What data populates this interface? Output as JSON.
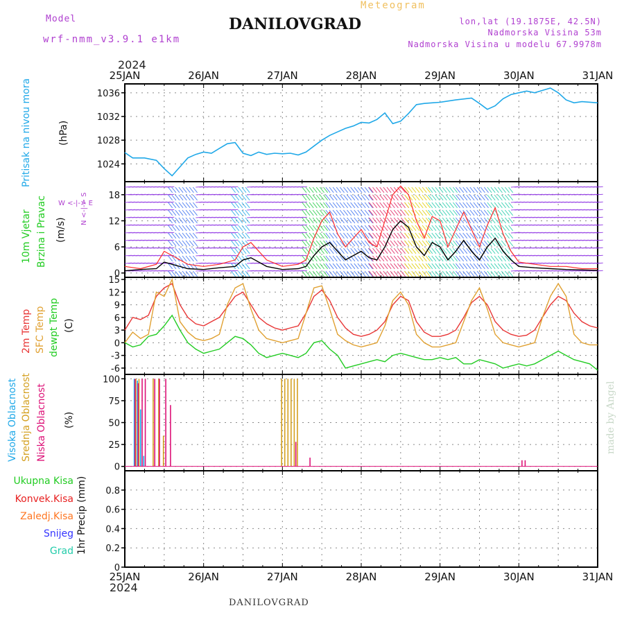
{
  "header": {
    "model_label": "Model",
    "model_name": "wrf-nmm_v3.9.1 e1km",
    "station": "DANILOVGRAD",
    "product": "Meteogram",
    "coords": "lon,lat (19.1875E, 42.5N)",
    "elevation": "Nadmorska Visina 53m",
    "model_elevation": "Nadmorska Visina u modelu 67.9978m",
    "footer_station": "DANILOVGRAD",
    "credit": "made by Angel"
  },
  "colors": {
    "pressure": "#1fa8e8",
    "wind_speed": "#000000",
    "wind_gust": "#ff2b2b",
    "temp_2m": "#e83535",
    "temp_sfc": "#e0a030",
    "dewpoint": "#22cc22",
    "cloud_high": "#1fa8e8",
    "cloud_mid": "#d4a020",
    "cloud_low": "#dd1177",
    "precip_total": "#22cc22",
    "precip_conv": "#e82020",
    "precip_frozen": "#ff7722",
    "snow": "#3333ff",
    "graupel": "#22ccaa"
  },
  "chart_data": [
    {
      "type": "line",
      "panel": "pressure",
      "x_ticks": [
        "25JAN",
        "26JAN",
        "27JAN",
        "28JAN",
        "29JAN",
        "30JAN",
        "31JAN"
      ],
      "year": "2024",
      "ylabel": "Pritisak na nivou mora",
      "yunit": "(hPa)",
      "ylim": [
        1021,
        1037.5
      ],
      "yticks": [
        1024,
        1028,
        1032,
        1036
      ],
      "series": [
        {
          "key": "slp",
          "x": [
            0,
            0.1,
            0.25,
            0.4,
            0.5,
            0.6,
            0.7,
            0.8,
            0.9,
            1.0,
            1.1,
            1.2,
            1.3,
            1.4,
            1.5,
            1.6,
            1.7,
            1.8,
            1.9,
            2.0,
            2.1,
            2.2,
            2.3,
            2.4,
            2.5,
            2.6,
            2.7,
            2.8,
            2.9,
            3.0,
            3.1,
            3.2,
            3.3,
            3.4,
            3.5,
            3.6,
            3.7,
            3.8,
            3.9,
            4.0,
            4.2,
            4.4,
            4.5,
            4.6,
            4.7,
            4.8,
            4.9,
            5.0,
            5.1,
            5.2,
            5.3,
            5.4,
            5.5,
            5.6,
            5.7,
            5.8,
            6.0
          ],
          "values": [
            1025.9,
            1025.0,
            1025.0,
            1024.6,
            1023.2,
            1022.0,
            1023.5,
            1025.0,
            1025.6,
            1026.0,
            1025.8,
            1026.6,
            1027.4,
            1027.6,
            1025.8,
            1025.4,
            1026.0,
            1025.6,
            1025.8,
            1025.7,
            1025.8,
            1025.5,
            1026.0,
            1027.0,
            1028.0,
            1028.8,
            1029.4,
            1030.0,
            1030.4,
            1031.0,
            1030.9,
            1031.5,
            1032.6,
            1030.8,
            1031.2,
            1032.5,
            1034.0,
            1034.2,
            1034.3,
            1034.4,
            1034.8,
            1035.1,
            1034.2,
            1033.2,
            1033.8,
            1035.0,
            1035.7,
            1036.0,
            1036.3,
            1036.0,
            1036.4,
            1036.8,
            1036.0,
            1034.8,
            1034.3,
            1034.5,
            1034.3
          ]
        }
      ]
    },
    {
      "type": "line",
      "panel": "wind",
      "ylabel": "10m Vjetar Brzina i Pravac",
      "yunit": "(m/s)",
      "compass": "W <-|-> E",
      "compass_ns": "N <-|-> S",
      "ylim": [
        -1,
        21
      ],
      "yticks": [
        0,
        6,
        12,
        18
      ],
      "series": [
        {
          "key": "speed",
          "x": [
            0,
            0.2,
            0.4,
            0.5,
            0.6,
            0.8,
            1.0,
            1.2,
            1.4,
            1.5,
            1.6,
            1.8,
            2.0,
            2.2,
            2.3,
            2.4,
            2.5,
            2.6,
            2.7,
            2.8,
            2.9,
            3.0,
            3.1,
            3.2,
            3.3,
            3.4,
            3.5,
            3.6,
            3.7,
            3.8,
            3.9,
            4.0,
            4.1,
            4.2,
            4.3,
            4.4,
            4.5,
            4.6,
            4.7,
            4.8,
            4.9,
            5.0,
            5.2,
            5.4,
            5.6,
            5.8,
            6.0
          ],
          "values": [
            0.5,
            0.8,
            1.0,
            2.5,
            2.0,
            1.0,
            0.8,
            1.2,
            1.5,
            3.0,
            3.5,
            1.5,
            0.8,
            1.0,
            1.5,
            4.0,
            6.0,
            7.0,
            5.0,
            3.0,
            4.0,
            5.0,
            3.5,
            3.0,
            6.0,
            10.0,
            12.0,
            10.5,
            6.0,
            4.0,
            7.0,
            6.0,
            3.0,
            5.0,
            7.5,
            5.0,
            3.0,
            6.0,
            8.0,
            5.0,
            3.0,
            1.5,
            1.2,
            1.0,
            0.8,
            0.7,
            0.6
          ]
        },
        {
          "key": "gust",
          "x": [
            0,
            0.2,
            0.4,
            0.5,
            0.6,
            0.8,
            1.0,
            1.2,
            1.4,
            1.5,
            1.6,
            1.8,
            2.0,
            2.2,
            2.3,
            2.4,
            2.5,
            2.6,
            2.7,
            2.8,
            2.9,
            3.0,
            3.1,
            3.2,
            3.3,
            3.4,
            3.5,
            3.6,
            3.7,
            3.8,
            3.9,
            4.0,
            4.1,
            4.2,
            4.3,
            4.4,
            4.5,
            4.6,
            4.7,
            4.8,
            4.9,
            5.0,
            5.2,
            5.4,
            5.6,
            5.8,
            6.0
          ],
          "values": [
            1.5,
            1.0,
            2.0,
            5.0,
            4.0,
            2.0,
            1.5,
            2.0,
            3.0,
            6.0,
            7.0,
            3.0,
            1.5,
            2.0,
            3.0,
            8.0,
            12.0,
            14.0,
            9.0,
            6.0,
            8.0,
            10.0,
            7.0,
            6.0,
            12.0,
            18.0,
            20.0,
            18.0,
            12.0,
            8.0,
            13.0,
            12.0,
            6.0,
            10.0,
            14.0,
            10.0,
            6.0,
            11.0,
            15.0,
            9.0,
            5.0,
            2.5,
            2.0,
            1.5,
            1.5,
            1.0,
            1.0
          ]
        }
      ]
    },
    {
      "type": "line",
      "panel": "temperature",
      "ylabel_2m": "2m Temp",
      "ylabel_sfc": "SFC Temp",
      "ylabel_dew": "dewpt Temp",
      "yunit": "(C)",
      "ylim": [
        -7.5,
        15.5
      ],
      "yticks": [
        -6,
        -3,
        0,
        3,
        6,
        9,
        12,
        15
      ],
      "series": [
        {
          "key": "t2m",
          "x": [
            0,
            0.1,
            0.2,
            0.3,
            0.4,
            0.5,
            0.6,
            0.7,
            0.8,
            0.9,
            1.0,
            1.1,
            1.2,
            1.3,
            1.4,
            1.5,
            1.6,
            1.7,
            1.8,
            1.9,
            2.0,
            2.1,
            2.2,
            2.3,
            2.4,
            2.5,
            2.6,
            2.7,
            2.8,
            2.9,
            3.0,
            3.1,
            3.2,
            3.3,
            3.4,
            3.5,
            3.6,
            3.7,
            3.8,
            3.9,
            4.0,
            4.1,
            4.2,
            4.3,
            4.4,
            4.5,
            4.6,
            4.7,
            4.8,
            4.9,
            5.0,
            5.1,
            5.2,
            5.3,
            5.4,
            5.5,
            5.6,
            5.7,
            5.8,
            5.9,
            6.0
          ],
          "values": [
            3.0,
            6.0,
            5.5,
            6.5,
            11.0,
            13.0,
            14.0,
            9.0,
            6.0,
            4.5,
            4.0,
            5.0,
            6.0,
            8.5,
            11.0,
            12.0,
            9.0,
            6.0,
            4.5,
            3.5,
            3.0,
            3.5,
            4.0,
            7.0,
            11.0,
            12.5,
            10.0,
            6.0,
            3.5,
            2.0,
            1.5,
            2.0,
            3.0,
            5.0,
            9.0,
            11.0,
            10.0,
            5.0,
            2.5,
            1.5,
            1.5,
            2.0,
            3.0,
            6.0,
            9.5,
            11.0,
            9.0,
            5.0,
            3.0,
            2.0,
            1.5,
            1.8,
            3.0,
            6.0,
            9.0,
            11.0,
            10.0,
            7.0,
            5.0,
            4.0,
            3.5
          ]
        },
        {
          "key": "tsfc",
          "x": [
            0,
            0.1,
            0.2,
            0.3,
            0.4,
            0.5,
            0.6,
            0.7,
            0.8,
            0.9,
            1.0,
            1.1,
            1.2,
            1.3,
            1.4,
            1.5,
            1.6,
            1.7,
            1.8,
            1.9,
            2.0,
            2.1,
            2.2,
            2.3,
            2.4,
            2.5,
            2.6,
            2.7,
            2.8,
            2.9,
            3.0,
            3.1,
            3.2,
            3.3,
            3.4,
            3.5,
            3.6,
            3.7,
            3.8,
            3.9,
            4.0,
            4.1,
            4.2,
            4.3,
            4.4,
            4.5,
            4.6,
            4.7,
            4.8,
            4.9,
            5.0,
            5.1,
            5.2,
            5.3,
            5.4,
            5.5,
            5.6,
            5.7,
            5.8,
            5.9,
            6.0
          ],
          "values": [
            0.0,
            2.5,
            1.0,
            2.0,
            12.0,
            11.0,
            15.0,
            5.0,
            2.5,
            1.0,
            0.5,
            1.0,
            2.0,
            9.0,
            13.0,
            14.0,
            8.0,
            3.0,
            1.0,
            0.5,
            0.0,
            0.5,
            1.0,
            7.0,
            13.0,
            13.5,
            8.0,
            2.0,
            0.5,
            -0.5,
            -1.0,
            -0.5,
            0.0,
            4.0,
            10.0,
            12.0,
            9.0,
            2.0,
            0.0,
            -1.0,
            -1.0,
            -0.5,
            0.0,
            5.0,
            10.0,
            13.0,
            8.0,
            2.0,
            0.0,
            -0.5,
            -1.0,
            -0.5,
            0.0,
            6.0,
            11.0,
            14.0,
            11.0,
            2.0,
            0.0,
            -0.5,
            -0.5
          ]
        },
        {
          "key": "dewpt",
          "x": [
            0,
            0.1,
            0.2,
            0.3,
            0.4,
            0.5,
            0.6,
            0.7,
            0.8,
            0.9,
            1.0,
            1.1,
            1.2,
            1.3,
            1.4,
            1.5,
            1.6,
            1.7,
            1.8,
            1.9,
            2.0,
            2.1,
            2.2,
            2.3,
            2.4,
            2.5,
            2.6,
            2.7,
            2.8,
            2.9,
            3.0,
            3.1,
            3.2,
            3.3,
            3.4,
            3.5,
            3.6,
            3.7,
            3.8,
            3.9,
            4.0,
            4.1,
            4.2,
            4.3,
            4.4,
            4.5,
            4.6,
            4.7,
            4.8,
            4.9,
            5.0,
            5.1,
            5.2,
            5.3,
            5.4,
            5.5,
            5.6,
            5.7,
            5.8,
            5.9,
            6.0
          ],
          "values": [
            0.0,
            -1.0,
            -0.5,
            1.5,
            2.0,
            4.0,
            6.5,
            3.0,
            0.0,
            -1.5,
            -2.5,
            -2.0,
            -1.5,
            0.0,
            1.5,
            1.0,
            -0.5,
            -2.5,
            -3.5,
            -3.0,
            -2.5,
            -3.0,
            -3.5,
            -2.5,
            0.0,
            0.5,
            -1.5,
            -3.0,
            -6.0,
            -5.5,
            -5.0,
            -4.5,
            -4.0,
            -4.5,
            -3.0,
            -2.5,
            -3.0,
            -3.5,
            -4.0,
            -4.0,
            -3.5,
            -4.0,
            -3.5,
            -5.0,
            -5.0,
            -4.0,
            -4.5,
            -5.0,
            -6.0,
            -5.5,
            -5.0,
            -5.5,
            -5.0,
            -4.0,
            -3.0,
            -2.0,
            -3.0,
            -4.0,
            -4.5,
            -5.0,
            -6.5
          ]
        }
      ]
    },
    {
      "type": "bar",
      "panel": "clouds",
      "ylabel_high": "Visoka Oblacnost",
      "ylabel_mid": "Srednja Oblacnost",
      "ylabel_low": "Niska Oblacnost",
      "yunit": "(%)",
      "ylim": [
        -5,
        105
      ],
      "yticks": [
        0,
        25,
        50,
        75,
        100
      ],
      "series": [
        {
          "key": "high",
          "x": [
            0.12,
            0.16,
            0.2,
            0.24
          ],
          "values": [
            100,
            98,
            65,
            12
          ]
        },
        {
          "key": "mid",
          "x": [
            0.14,
            0.18,
            0.36,
            0.43,
            0.49,
            1.99,
            2.03,
            2.07,
            2.11,
            2.15,
            2.19
          ],
          "values": [
            100,
            100,
            100,
            100,
            35,
            100,
            100,
            100,
            100,
            100,
            100
          ]
        },
        {
          "key": "low",
          "x": [
            0.13,
            0.17,
            0.22,
            0.26,
            0.38,
            0.44,
            0.52,
            0.58,
            2.17,
            2.35,
            5.04,
            5.08
          ],
          "values": [
            100,
            95,
            100,
            100,
            100,
            100,
            100,
            70,
            28,
            10,
            7,
            7
          ]
        }
      ]
    },
    {
      "type": "bar",
      "panel": "precipitation",
      "ylabel_total": "Ukupna Kisa",
      "ylabel_conv": "Konvek.Kisa",
      "ylabel_frozen": "Zaledj.Kisa",
      "ylabel_snow": "Snijeg",
      "ylabel_grad": "Grad",
      "yunit": "1hr Precip (mm)",
      "ylim": [
        0,
        1.0
      ],
      "yticks": [
        0,
        0.2,
        0.4,
        0.6,
        0.8
      ],
      "series": []
    }
  ]
}
